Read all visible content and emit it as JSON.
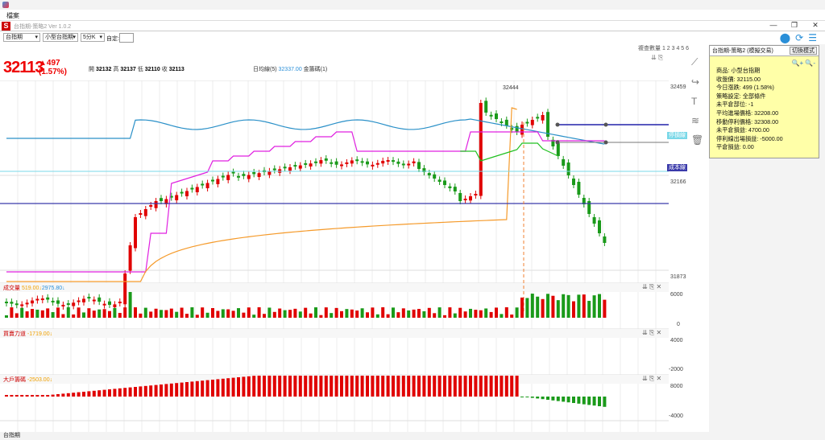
{
  "os": {
    "menu": "檔案"
  },
  "app": {
    "logo": "S",
    "title": "台指期-策略2 Ver 1.0.2"
  },
  "window_buttons": [
    "—",
    "❐",
    "✕"
  ],
  "toolbar": {
    "symbol": "台指期",
    "contract": "小型台指期",
    "interval": "5分K",
    "custom_label": "自定:"
  },
  "header": {
    "price": "32113",
    "change": "▲497",
    "change_pct": "(1.57%)",
    "open_label": "開",
    "open": "32132",
    "high_label": "高",
    "high": "32137",
    "low_label": "低",
    "low": "32110",
    "close_label": "收",
    "close": "32113",
    "ma_label": "日均線(5)",
    "ma_value": "32337.00",
    "ma_extra": "金籌碼(1)",
    "review": "複查數量 1 2 3 4 5 6"
  },
  "main_axis": {
    "top": "32459",
    "mid": "32166",
    "bottom": "31873",
    "peak_label": "32444"
  },
  "side_tags": {
    "stop": "停損線",
    "cost": "成本線"
  },
  "colors": {
    "up": "#e00000",
    "down": "#1a9a1a",
    "ma_blue": "#2a90c8",
    "ma_magenta": "#e020e0",
    "ma_orange": "#f59a2a",
    "ma_green": "#20c020",
    "cost_line": "#3a3aaa",
    "stop_line": "#7ad8e8"
  },
  "panels": {
    "volume": {
      "name": "成交量",
      "v1": "519.00↓",
      "v2": "2975.80↓",
      "ticks": [
        "6000",
        "0"
      ]
    },
    "power": {
      "name": "買賣力道",
      "v1": "-1719.00↓",
      "ticks": [
        "4000",
        "-2000"
      ]
    },
    "large": {
      "name": "大戶籌碼",
      "v1": "-2503.00↓",
      "ticks": [
        "8000",
        "-4000"
      ]
    }
  },
  "info": {
    "title": "台指期-策略2 (模擬交易)",
    "switch_btn": "切換模式",
    "lines": [
      "商品: 小型台指期",
      "收盤價: 32115.00",
      "今日漲跌: 499 (1.58%)",
      "策略設定: 全部條件",
      "未平倉部位: -1",
      "平均進場價格: 32208.00",
      "移動停利價格: 32308.00",
      "未平倉損益: 4700.00",
      "停利線出場損益: -5000.00",
      "平倉損益: 0.00"
    ]
  },
  "status": {
    "text": "台指期"
  },
  "icons": {
    "drawing_tools": [
      "line-draw-icon",
      "curve-icon",
      "text-icon",
      "fib-icon",
      "trash-icon"
    ],
    "top_right": [
      "location-icon",
      "refresh-icon",
      "list-icon"
    ]
  }
}
